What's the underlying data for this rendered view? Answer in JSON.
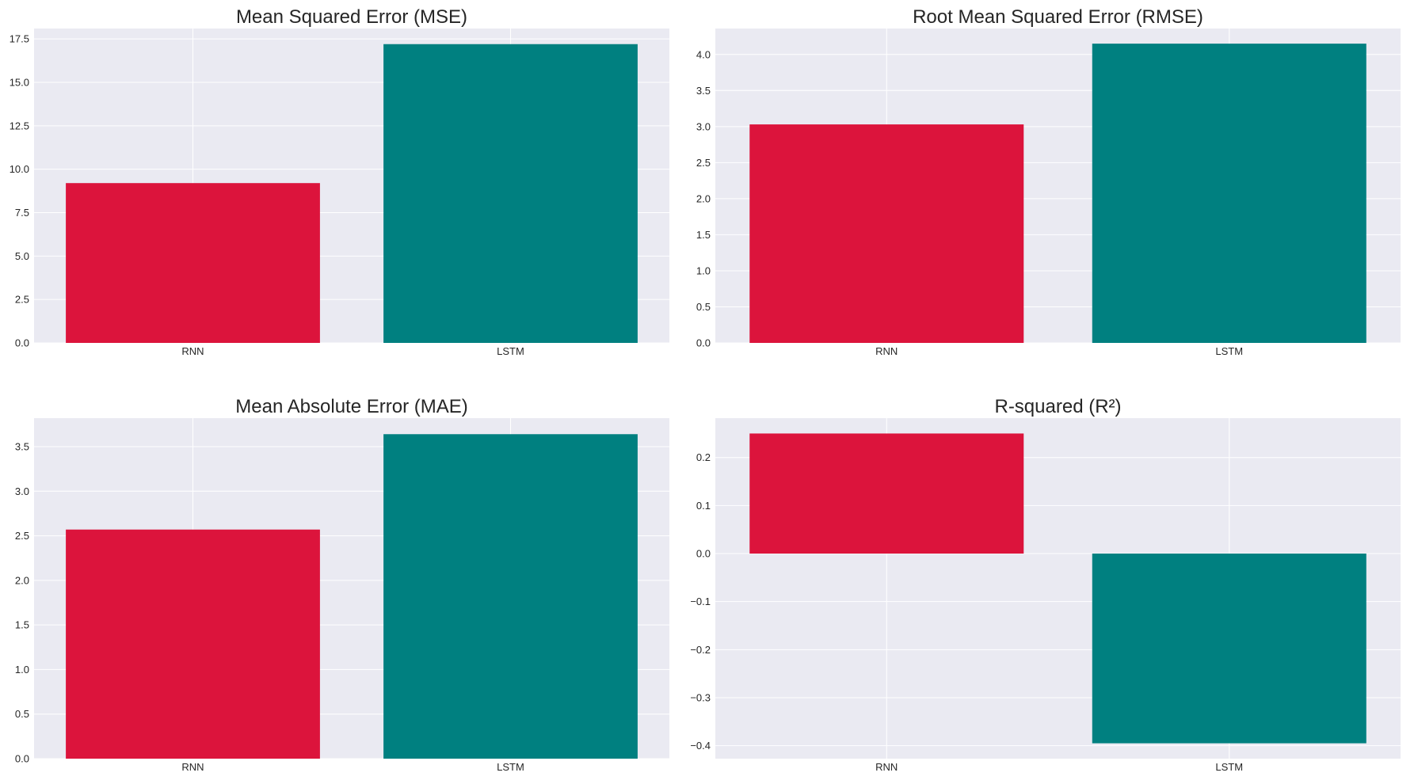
{
  "colors": {
    "rnn": "#DC143C",
    "lstm": "#008080",
    "plot_bg": "#EAEAF2",
    "grid": "#FFFFFF"
  },
  "chart_data": [
    {
      "type": "bar",
      "title": "Mean Squared Error (MSE)",
      "categories": [
        "RNN",
        "LSTM"
      ],
      "values": [
        9.2,
        17.2
      ],
      "ylim": [
        0,
        18.1
      ],
      "yticks": [
        0,
        2.5,
        5,
        7.5,
        10,
        12.5,
        15,
        17.5
      ],
      "ytick_labels": [
        "0.0",
        "2.5",
        "5.0",
        "7.5",
        "10.0",
        "12.5",
        "15.0",
        "17.5"
      ],
      "xlabel": "",
      "ylabel": "",
      "grid": true,
      "legend": "none"
    },
    {
      "type": "bar",
      "title": "Root Mean Squared Error (RMSE)",
      "categories": [
        "RNN",
        "LSTM"
      ],
      "values": [
        3.03,
        4.15
      ],
      "ylim": [
        0,
        4.36
      ],
      "yticks": [
        0,
        0.5,
        1,
        1.5,
        2,
        2.5,
        3,
        3.5,
        4
      ],
      "ytick_labels": [
        "0.0",
        "0.5",
        "1.0",
        "1.5",
        "2.0",
        "2.5",
        "3.0",
        "3.5",
        "4.0"
      ],
      "xlabel": "",
      "ylabel": "",
      "grid": true,
      "legend": "none"
    },
    {
      "type": "bar",
      "title": "Mean Absolute Error (MAE)",
      "categories": [
        "RNN",
        "LSTM"
      ],
      "values": [
        2.57,
        3.64
      ],
      "ylim": [
        0,
        3.82
      ],
      "yticks": [
        0,
        0.5,
        1,
        1.5,
        2,
        2.5,
        3,
        3.5
      ],
      "ytick_labels": [
        "0.0",
        "0.5",
        "1.0",
        "1.5",
        "2.0",
        "2.5",
        "3.0",
        "3.5"
      ],
      "xlabel": "",
      "ylabel": "",
      "grid": true,
      "legend": "none"
    },
    {
      "type": "bar",
      "title": "R-squared (R²)",
      "categories": [
        "RNN",
        "LSTM"
      ],
      "values": [
        0.25,
        -0.395
      ],
      "ylim": [
        -0.427,
        0.282
      ],
      "yticks": [
        -0.4,
        -0.3,
        -0.2,
        -0.1,
        0,
        0.1,
        0.2
      ],
      "ytick_labels": [
        "−0.4",
        "−0.3",
        "−0.2",
        "−0.1",
        "0.0",
        "0.1",
        "0.2"
      ],
      "xlabel": "",
      "ylabel": "",
      "grid": true,
      "legend": "none"
    }
  ]
}
